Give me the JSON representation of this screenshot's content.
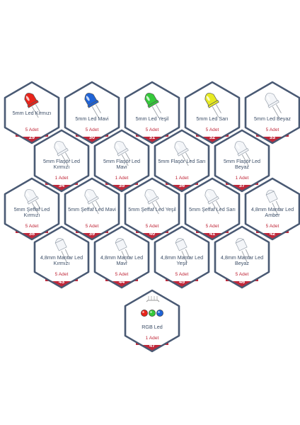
{
  "colors": {
    "frame": "#4a5a74",
    "badge": "#c0283a",
    "text": "#3d4f68",
    "count": "#c0283a"
  },
  "items": [
    {
      "label": "5mm Led Kırmızı",
      "count": "5 Adet",
      "number": "29",
      "icon": "red-led-icon",
      "color": "#e8241a"
    },
    {
      "label": "5mm Led Mavi",
      "count": "5 Adet",
      "number": "30",
      "icon": "blue-led-icon",
      "color": "#1f63d6"
    },
    {
      "label": "5mm Led Yeşil",
      "count": "5 Adet",
      "number": "31",
      "icon": "green-led-icon",
      "color": "#35c93a"
    },
    {
      "label": "5mm Led Sarı",
      "count": "5 Adet",
      "number": "32",
      "icon": "yellow-led-icon",
      "color": "#e6ea22"
    },
    {
      "label": "5mm Led Beyaz",
      "count": "5 Adet",
      "number": "33",
      "icon": "white-led-icon",
      "color": "#eef0f2"
    },
    {
      "label": "5mm Flaşör Led Kırmızı",
      "count": "1 Adet",
      "number": "34",
      "icon": "clear-led-icon",
      "color": "#eef0f2"
    },
    {
      "label": "5mm Flaşör Led Mavi",
      "count": "1 Adet",
      "number": "35",
      "icon": "clear-led-icon",
      "color": "#eef0f2"
    },
    {
      "label": "5mm Flaşör Led Sarı",
      "count": "1 Adet",
      "number": "36",
      "icon": "clear-led-icon",
      "color": "#eef0f2"
    },
    {
      "label": "5mm Flaşör Led Beyaz",
      "count": "1 Adet",
      "number": "37",
      "icon": "clear-led-icon",
      "color": "#eef0f2"
    },
    {
      "label": "5mm Şeffaf Led Kırmızı",
      "count": "5 Adet",
      "number": "38",
      "icon": "clear-led-icon",
      "color": "#eef0f2"
    },
    {
      "label": "5mm Şeffaf Led Mavi",
      "count": "5 Adet",
      "number": "39",
      "icon": "clear-led-icon",
      "color": "#eef0f2"
    },
    {
      "label": "5mm Şeffaf Led Yeşil",
      "count": "5 Adet",
      "number": "40",
      "icon": "clear-led-icon",
      "color": "#eef0f2"
    },
    {
      "label": "5mm Şeffaf Led Sarı",
      "count": "5 Adet",
      "number": "41",
      "icon": "clear-led-icon",
      "color": "#eef0f2"
    },
    {
      "label": "4,8mm Mantar Led Amber",
      "count": "5 Adet",
      "number": "42",
      "icon": "mushroom-led-icon",
      "color": "#eef0f2"
    },
    {
      "label": "4,8mm Mantar Led Kırmızı",
      "count": "5 Adet",
      "number": "43",
      "icon": "mushroom-led-icon",
      "color": "#eef0f2"
    },
    {
      "label": "4,8mm Mantar Led Mavi",
      "count": "5 Adet",
      "number": "44",
      "icon": "mushroom-led-icon",
      "color": "#eef0f2"
    },
    {
      "label": "4,8mm Mantar Led Yeşil",
      "count": "5 Adet",
      "number": "45",
      "icon": "mushroom-led-icon",
      "color": "#eef0f2"
    },
    {
      "label": "4,8mm Mantar Led Beyaz",
      "count": "5 Adet",
      "number": "46",
      "icon": "mushroom-led-icon",
      "color": "#eef0f2"
    },
    {
      "label": "RGB Led",
      "count": "1 Adet",
      "number": "47",
      "icon": "rgb-led-icon",
      "color": "#eef0f2"
    }
  ]
}
